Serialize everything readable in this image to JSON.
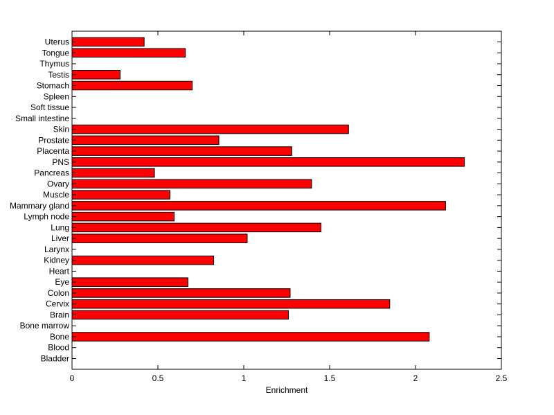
{
  "chart_data": {
    "type": "bar",
    "orientation": "horizontal",
    "title": "",
    "xlabel": "Enrichment",
    "ylabel": "",
    "xlim": [
      0,
      2.5
    ],
    "xticks": [
      0,
      0.5,
      1,
      1.5,
      2,
      2.5
    ],
    "xtick_labels": [
      "0",
      "0.5",
      "1",
      "1.5",
      "2",
      "2.5"
    ],
    "grid": false,
    "bar_color": "#ff0000",
    "bar_edge_color": "#000000",
    "categories": [
      "Bladder",
      "Blood",
      "Bone",
      "Bone marrow",
      "Brain",
      "Cervix",
      "Colon",
      "Eye",
      "Heart",
      "Kidney",
      "Larynx",
      "Liver",
      "Lung",
      "Lymph node",
      "Mammary gland",
      "Muscle",
      "Ovary",
      "Pancreas",
      "PNS",
      "Placenta",
      "Prostate",
      "Skin",
      "Small intestine",
      "Soft tissue",
      "Spleen",
      "Stomach",
      "Testis",
      "Thymus",
      "Tongue",
      "Uterus"
    ],
    "values": [
      0,
      0,
      2.08,
      0,
      1.26,
      1.85,
      1.27,
      0.675,
      0,
      0.825,
      0,
      1.02,
      1.45,
      0.595,
      2.175,
      0.57,
      1.395,
      0.48,
      2.285,
      1.28,
      0.855,
      1.61,
      0,
      0,
      0,
      0.7,
      0.28,
      0,
      0.66,
      0.42
    ]
  }
}
